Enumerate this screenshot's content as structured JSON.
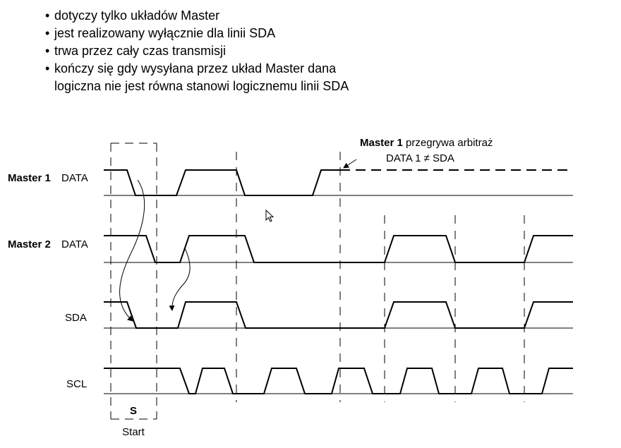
{
  "bullets": [
    {
      "marker": "•",
      "text": "dotyczy tylko układów Master"
    },
    {
      "marker": "•",
      "text": "jest realizowany wyłącznie dla linii SDA"
    },
    {
      "marker": "•",
      "text": "trwa przez cały czas transmisji"
    },
    {
      "marker": "•",
      "text": "kończy się gdy wysyłana przez układ Master dana",
      "text2": "logiczna nie jest równa stanowi logicznemu linii SDA"
    }
  ],
  "signals": {
    "master1": {
      "name": "Master 1",
      "signal": "DATA"
    },
    "master2": {
      "name": "Master 2",
      "signal": "DATA"
    },
    "sda": {
      "signal": "SDA"
    },
    "scl": {
      "signal": "SCL"
    }
  },
  "annotation": {
    "master": "Master 1",
    "rest": " przegrywa arbitraż",
    "condition": "DATA 1 ≠ SDA"
  },
  "start": {
    "symbol": "S",
    "label": "Start"
  }
}
